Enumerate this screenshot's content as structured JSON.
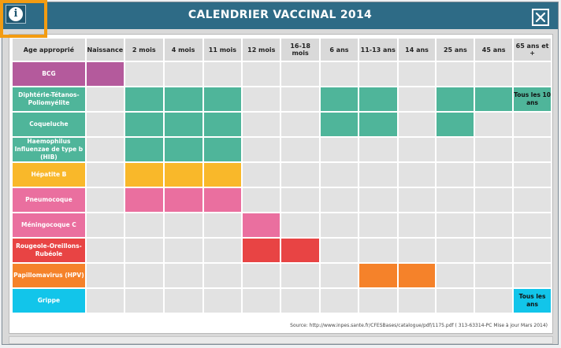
{
  "window": {
    "title": "CALENDRIER VACCINAL 2014"
  },
  "header": {
    "age_label": "Age approprié",
    "ages": [
      "Naissance",
      "2 mois",
      "4 mois",
      "11 mois",
      "12 mois",
      "16-18 mois",
      "6 ans",
      "11-13 ans",
      "14 ans",
      "25 ans",
      "45 ans",
      "65 ans et +"
    ]
  },
  "vaccines": [
    {
      "label": "BCG",
      "color": "#b45a9c",
      "cells": [
        1,
        0,
        0,
        0,
        0,
        0,
        0,
        0,
        0,
        0,
        0,
        0
      ],
      "note": ""
    },
    {
      "label": "Diphtérie-Tétanos-Poliomyélite",
      "color": "#4fb59a",
      "cells": [
        0,
        1,
        1,
        1,
        0,
        0,
        1,
        1,
        0,
        1,
        1,
        1
      ],
      "note": "Tous les 10 ans"
    },
    {
      "label": "Coqueluche",
      "color": "#4fb59a",
      "cells": [
        0,
        1,
        1,
        1,
        0,
        0,
        1,
        1,
        0,
        1,
        0,
        0
      ],
      "note": ""
    },
    {
      "label": "Haemophilus Influenzae de type b (HIB)",
      "color": "#4fb59a",
      "cells": [
        0,
        1,
        1,
        1,
        0,
        0,
        0,
        0,
        0,
        0,
        0,
        0
      ],
      "note": ""
    },
    {
      "label": "Hépatite B",
      "color": "#f9b82a",
      "cells": [
        0,
        1,
        1,
        1,
        0,
        0,
        0,
        0,
        0,
        0,
        0,
        0
      ],
      "note": ""
    },
    {
      "label": "Pneumocoque",
      "color": "#ea6f9f",
      "cells": [
        0,
        1,
        1,
        1,
        0,
        0,
        0,
        0,
        0,
        0,
        0,
        0
      ],
      "note": ""
    },
    {
      "label": "Méningocoque C",
      "color": "#ea6f9f",
      "cells": [
        0,
        0,
        0,
        0,
        1,
        0,
        0,
        0,
        0,
        0,
        0,
        0
      ],
      "note": ""
    },
    {
      "label": "Rougeole-Oreillons-Rubéole",
      "color": "#e84444",
      "cells": [
        0,
        0,
        0,
        0,
        1,
        1,
        0,
        0,
        0,
        0,
        0,
        0
      ],
      "note": ""
    },
    {
      "label": "Papillomavirus (HPV)",
      "color": "#f5822a",
      "cells": [
        0,
        0,
        0,
        0,
        0,
        0,
        0,
        1,
        1,
        0,
        0,
        0
      ],
      "note": ""
    },
    {
      "label": "Grippe",
      "color": "#12c5ea",
      "cells": [
        0,
        0,
        0,
        0,
        0,
        0,
        0,
        0,
        0,
        0,
        0,
        1
      ],
      "note": "Tous les ans"
    }
  ],
  "source": "Source: http://www.inpes.sante.fr/CFESBases/catalogue/pdf/1175.pdf ( 313-63314-PC Mise à jour Mars 2014)",
  "icons": {
    "info": "info-icon",
    "close": "close-icon"
  },
  "colors": {
    "titlebar": "#2e6b86",
    "highlight": "#f39c12",
    "empty_cell": "#e2e2e2"
  }
}
